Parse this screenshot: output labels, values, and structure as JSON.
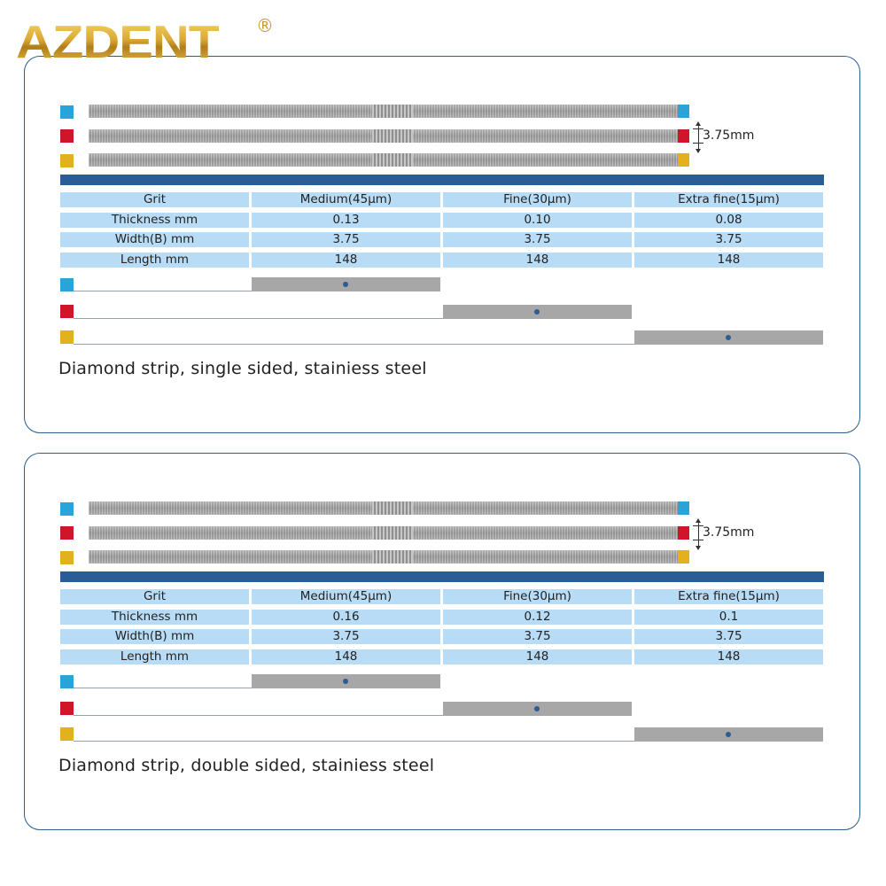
{
  "brand": {
    "name": "AZDENT",
    "registered_mark": "®"
  },
  "colors": {
    "medium": "#2aa3d8",
    "fine": "#d0142a",
    "extra_fine": "#e2b11e",
    "header_bar": "#2a5d96",
    "cell_bg": "#b9dcf6"
  },
  "panels": [
    {
      "width_label": "3.75mm",
      "table": {
        "headers": [
          "Grit",
          "Medium(45μm)",
          "Fine(30μm)",
          "Extra fine(15μm)"
        ],
        "rows": [
          [
            "Thickness mm",
            "0.13",
            "0.10",
            "0.08"
          ],
          [
            "Width(B) mm",
            "3.75",
            "3.75",
            "3.75"
          ],
          [
            "Length mm",
            "148",
            "148",
            "148"
          ]
        ]
      },
      "caption": "Diamond strip, single sided, stainiess steel"
    },
    {
      "width_label": "3.75mm",
      "table": {
        "headers": [
          "Grit",
          "Medium(45μm)",
          "Fine(30μm)",
          "Extra fine(15μm)"
        ],
        "rows": [
          [
            "Thickness mm",
            "0.16",
            "0.12",
            "0.1"
          ],
          [
            "Width(B) mm",
            "3.75",
            "3.75",
            "3.75"
          ],
          [
            "Length mm",
            "148",
            "148",
            "148"
          ]
        ]
      },
      "caption": "Diamond strip, double sided, stainiess steel"
    }
  ]
}
